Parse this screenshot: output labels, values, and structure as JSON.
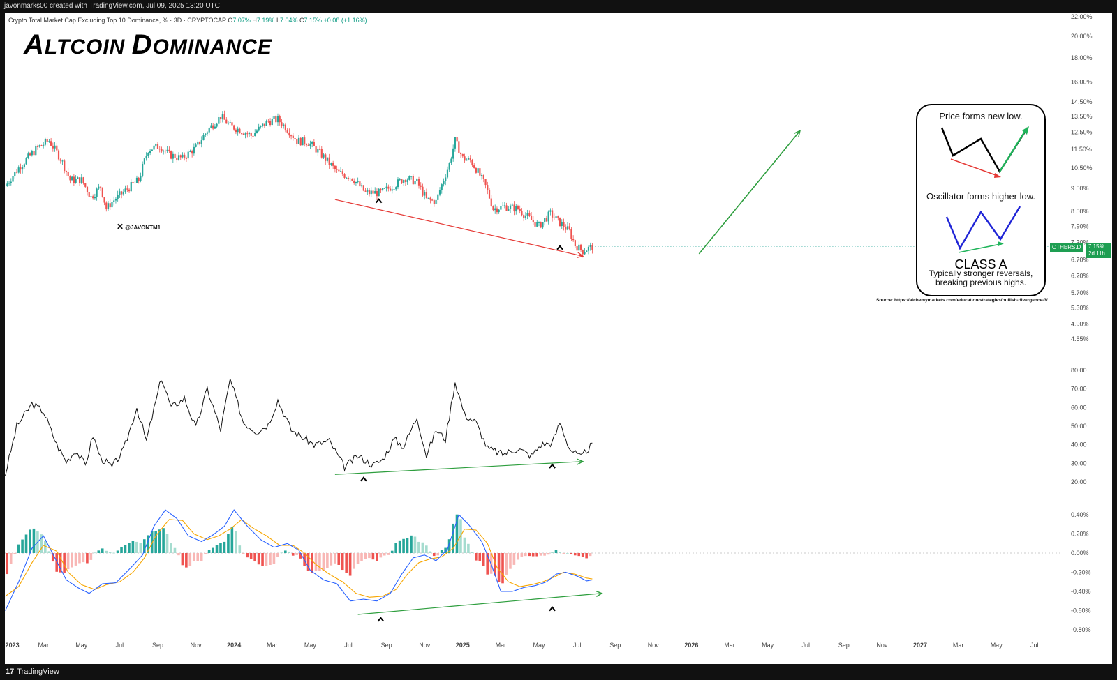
{
  "header": {
    "attribution": "javonmarks00 created with TradingView.com, Jul 09, 2025 13:20 UTC"
  },
  "footer": {
    "logo": "17",
    "brand": "TradingView"
  },
  "legend": {
    "symbol": "Crypto Total Market Cap Excluding Top 10 Dominance, % · 3D · CRYPTOCAP",
    "o_label": "O",
    "o": "7.07%",
    "h_label": "H",
    "h": "7.19%",
    "l_label": "L",
    "l": "7.04%",
    "c_label": "C",
    "c": "7.15%",
    "chg": "+0.08 (+1.16%)"
  },
  "title": {
    "first_big": "A",
    "first_rest": "LTCOIN ",
    "second_big": "D",
    "second_rest": "OMINANCE"
  },
  "watermark": "@JAVONTM1",
  "card": {
    "line1": "Price forms new low.",
    "line2": "Oscillator forms higher low.",
    "class_label": "CLASS A",
    "desc1": "Typically stronger reversals,",
    "desc2": "breaking previous highs."
  },
  "source": "Source: https://alchemymarkets.com/education/strategies/bullish-divergence-3/",
  "tags": {
    "symbol": "OTHERS.D",
    "price": "7.15%",
    "countdown": "2d 11h"
  },
  "colors": {
    "up": "#26a69a",
    "down": "#ef5350",
    "green": "#2e9e3e",
    "red": "#e53935",
    "blue": "#2962ff",
    "orange": "#f7a600"
  },
  "chart_data": [
    {
      "type": "candlestick",
      "title": "Crypto Total Market Cap Excluding Top 10 Dominance",
      "yscale": "log",
      "y_tick_labels": [
        "22.00%",
        "20.00%",
        "18.00%",
        "16.00%",
        "14.50%",
        "13.50%",
        "12.50%",
        "11.50%",
        "10.50%",
        "9.50%",
        "8.50%",
        "7.90%",
        "7.30%",
        "6.70%",
        "6.20%",
        "5.70%",
        "5.30%",
        "4.90%",
        "4.55%"
      ],
      "y_tick_values": [
        22,
        20,
        18,
        16,
        14.5,
        13.5,
        12.5,
        11.5,
        10.5,
        9.5,
        8.5,
        7.9,
        7.3,
        6.7,
        6.2,
        5.7,
        5.3,
        4.9,
        4.55
      ],
      "x_tick_labels": [
        "2023",
        "Mar",
        "May",
        "Jul",
        "Sep",
        "Nov",
        "2024",
        "Mar",
        "May",
        "Jul",
        "Sep",
        "Nov",
        "2025",
        "Mar",
        "May",
        "Jul",
        "Sep",
        "Nov",
        "2026",
        "Mar",
        "May",
        "Jul",
        "Sep",
        "Nov",
        "2027",
        "Mar",
        "May",
        "Jul"
      ],
      "x_tick_months": [
        0,
        2,
        4,
        6,
        8,
        10,
        12,
        14,
        16,
        18,
        20,
        22,
        24,
        26,
        28,
        30,
        32,
        34,
        36,
        38,
        40,
        42,
        44,
        46,
        48,
        50,
        52,
        54
      ],
      "x_range_months": [
        0,
        57.2
      ],
      "anchors": [
        [
          0,
          9.6
        ],
        [
          0.7,
          10.5
        ],
        [
          1.7,
          11.6
        ],
        [
          2.3,
          12.0
        ],
        [
          2.9,
          11.0
        ],
        [
          3.4,
          9.9
        ],
        [
          4.0,
          9.9
        ],
        [
          4.5,
          9.1
        ],
        [
          5.0,
          9.6
        ],
        [
          5.3,
          8.6
        ],
        [
          5.6,
          8.9
        ],
        [
          6.3,
          9.4
        ],
        [
          7.0,
          9.9
        ],
        [
          7.5,
          11.5
        ],
        [
          8.1,
          11.7
        ],
        [
          8.6,
          11.2
        ],
        [
          9.3,
          11.0
        ],
        [
          10.0,
          11.6
        ],
        [
          10.6,
          12.6
        ],
        [
          11.3,
          13.5
        ],
        [
          11.8,
          12.9
        ],
        [
          12.4,
          12.6
        ],
        [
          12.9,
          12.3
        ],
        [
          13.4,
          12.8
        ],
        [
          13.8,
          13.2
        ],
        [
          14.3,
          13.3
        ],
        [
          14.8,
          12.7
        ],
        [
          15.3,
          12.0
        ],
        [
          15.9,
          11.9
        ],
        [
          16.6,
          11.2
        ],
        [
          17.4,
          10.3
        ],
        [
          18.2,
          10.0
        ],
        [
          18.9,
          9.3
        ],
        [
          19.7,
          9.3
        ],
        [
          20.3,
          9.6
        ],
        [
          21.0,
          10.0
        ],
        [
          21.6,
          9.8
        ],
        [
          22.1,
          9.0
        ],
        [
          22.6,
          8.9
        ],
        [
          23.3,
          10.7
        ],
        [
          23.6,
          12.0
        ],
        [
          24.0,
          11.0
        ],
        [
          24.4,
          10.9
        ],
        [
          24.8,
          10.3
        ],
        [
          25.2,
          9.6
        ],
        [
          25.6,
          8.6
        ],
        [
          26.2,
          8.7
        ],
        [
          26.9,
          8.6
        ],
        [
          27.5,
          8.2
        ],
        [
          28.0,
          7.9
        ],
        [
          28.6,
          8.4
        ],
        [
          29.0,
          8.1
        ],
        [
          29.6,
          7.7
        ],
        [
          29.9,
          7.2
        ],
        [
          30.3,
          7.0
        ],
        [
          30.8,
          7.15
        ]
      ],
      "annotations": [
        {
          "kind": "trendline",
          "color": "red",
          "from": [
            17.3,
            9.0
          ],
          "to": [
            30.3,
            6.82
          ]
        },
        {
          "kind": "arrow",
          "color": "green",
          "from": [
            36.4,
            6.9
          ],
          "to": [
            41.7,
            12.6
          ]
        },
        {
          "kind": "caret",
          "at": [
            19.6,
            8.95
          ]
        },
        {
          "kind": "caret",
          "at": [
            29.1,
            7.12
          ]
        }
      ],
      "last": 7.15
    },
    {
      "type": "line",
      "title": "RSI",
      "y_tick_labels": [
        "80.00",
        "70.00",
        "60.00",
        "50.00",
        "40.00",
        "30.00",
        "20.00"
      ],
      "y_tick_values": [
        80,
        70,
        60,
        50,
        40,
        30,
        20
      ],
      "anchors": [
        [
          0,
          24
        ],
        [
          0.6,
          50
        ],
        [
          1.4,
          62
        ],
        [
          2.0,
          58
        ],
        [
          2.7,
          40
        ],
        [
          3.2,
          31
        ],
        [
          3.7,
          37
        ],
        [
          4.2,
          29
        ],
        [
          4.6,
          45
        ],
        [
          5.0,
          33
        ],
        [
          5.6,
          28
        ],
        [
          6.2,
          37
        ],
        [
          6.9,
          60
        ],
        [
          7.4,
          42
        ],
        [
          8.2,
          76
        ],
        [
          8.7,
          60
        ],
        [
          9.4,
          65
        ],
        [
          10.0,
          49
        ],
        [
          10.6,
          70
        ],
        [
          11.3,
          48
        ],
        [
          11.8,
          75
        ],
        [
          12.5,
          52
        ],
        [
          13.2,
          47
        ],
        [
          13.8,
          51
        ],
        [
          14.3,
          64
        ],
        [
          15.0,
          48
        ],
        [
          15.6,
          44
        ],
        [
          16.2,
          40
        ],
        [
          17.0,
          42
        ],
        [
          17.8,
          28
        ],
        [
          18.5,
          34
        ],
        [
          19.3,
          29
        ],
        [
          19.8,
          32
        ],
        [
          20.4,
          43
        ],
        [
          20.9,
          39
        ],
        [
          21.6,
          55
        ],
        [
          22.1,
          34
        ],
        [
          22.6,
          48
        ],
        [
          23.1,
          43
        ],
        [
          23.6,
          74
        ],
        [
          24.1,
          56
        ],
        [
          24.7,
          52
        ],
        [
          25.3,
          38
        ],
        [
          26.1,
          35
        ],
        [
          26.9,
          38
        ],
        [
          27.6,
          34
        ],
        [
          28.1,
          40
        ],
        [
          28.7,
          41
        ],
        [
          29.1,
          52
        ],
        [
          29.6,
          38
        ],
        [
          30.2,
          33
        ],
        [
          30.5,
          37
        ],
        [
          30.8,
          40
        ]
      ],
      "annotations": [
        {
          "kind": "trendline",
          "color": "green",
          "from": [
            17.3,
            24
          ],
          "to": [
            30.3,
            31
          ]
        },
        {
          "kind": "caret",
          "at": [
            18.8,
            21.6
          ]
        },
        {
          "kind": "caret",
          "at": [
            28.7,
            28.6
          ]
        }
      ]
    },
    {
      "type": "macd",
      "title": "MACD",
      "y_tick_labels": [
        "0.40%",
        "0.20%",
        "0.00%",
        "-0.20%",
        "-0.40%",
        "-0.60%",
        "-0.80%"
      ],
      "y_tick_values": [
        0.4,
        0.2,
        0,
        -0.2,
        -0.4,
        -0.6,
        -0.8
      ],
      "macd": [
        [
          0,
          -0.6
        ],
        [
          0.7,
          -0.3
        ],
        [
          1.4,
          0.05
        ],
        [
          2.0,
          0.18
        ],
        [
          2.6,
          -0.05
        ],
        [
          3.2,
          -0.28
        ],
        [
          3.8,
          -0.36
        ],
        [
          4.4,
          -0.42
        ],
        [
          5.1,
          -0.32
        ],
        [
          5.8,
          -0.31
        ],
        [
          6.6,
          -0.15
        ],
        [
          7.2,
          -0.02
        ],
        [
          7.8,
          0.28
        ],
        [
          8.4,
          0.45
        ],
        [
          9.0,
          0.36
        ],
        [
          9.6,
          0.18
        ],
        [
          10.3,
          0.12
        ],
        [
          10.9,
          0.19
        ],
        [
          11.5,
          0.28
        ],
        [
          12.0,
          0.45
        ],
        [
          12.7,
          0.28
        ],
        [
          13.4,
          0.14
        ],
        [
          14.1,
          0.06
        ],
        [
          14.8,
          0.1
        ],
        [
          15.4,
          0.03
        ],
        [
          16.0,
          -0.18
        ],
        [
          16.7,
          -0.28
        ],
        [
          17.4,
          -0.32
        ],
        [
          18.1,
          -0.5
        ],
        [
          18.8,
          -0.48
        ],
        [
          19.5,
          -0.5
        ],
        [
          20.2,
          -0.42
        ],
        [
          20.8,
          -0.22
        ],
        [
          21.4,
          -0.05
        ],
        [
          22.0,
          -0.02
        ],
        [
          22.6,
          -0.08
        ],
        [
          23.2,
          0.04
        ],
        [
          23.8,
          0.4
        ],
        [
          24.3,
          0.3
        ],
        [
          25.0,
          0.12
        ],
        [
          25.5,
          -0.12
        ],
        [
          26.0,
          -0.4
        ],
        [
          26.6,
          -0.4
        ],
        [
          27.2,
          -0.36
        ],
        [
          27.8,
          -0.34
        ],
        [
          28.4,
          -0.3
        ],
        [
          28.9,
          -0.22
        ],
        [
          29.4,
          -0.2
        ],
        [
          30.0,
          -0.24
        ],
        [
          30.5,
          -0.29
        ],
        [
          30.8,
          -0.28
        ]
      ],
      "signal": [
        [
          0,
          -0.45
        ],
        [
          0.7,
          -0.35
        ],
        [
          1.4,
          -0.1
        ],
        [
          2.0,
          0.08
        ],
        [
          2.7,
          0.02
        ],
        [
          3.3,
          -0.2
        ],
        [
          4.0,
          -0.33
        ],
        [
          4.7,
          -0.38
        ],
        [
          5.3,
          -0.33
        ],
        [
          6.0,
          -0.3
        ],
        [
          6.7,
          -0.2
        ],
        [
          7.3,
          -0.05
        ],
        [
          7.9,
          0.18
        ],
        [
          8.6,
          0.35
        ],
        [
          9.3,
          0.34
        ],
        [
          9.9,
          0.2
        ],
        [
          10.6,
          0.14
        ],
        [
          11.2,
          0.18
        ],
        [
          11.8,
          0.25
        ],
        [
          12.4,
          0.35
        ],
        [
          13.0,
          0.26
        ],
        [
          13.7,
          0.18
        ],
        [
          14.4,
          0.08
        ],
        [
          15.1,
          0.08
        ],
        [
          15.7,
          0.0
        ],
        [
          16.3,
          -0.12
        ],
        [
          17.0,
          -0.22
        ],
        [
          17.7,
          -0.3
        ],
        [
          18.4,
          -0.42
        ],
        [
          19.1,
          -0.46
        ],
        [
          19.8,
          -0.45
        ],
        [
          20.5,
          -0.38
        ],
        [
          21.1,
          -0.22
        ],
        [
          21.7,
          -0.1
        ],
        [
          22.3,
          -0.06
        ],
        [
          22.9,
          -0.04
        ],
        [
          23.5,
          0.05
        ],
        [
          24.1,
          0.25
        ],
        [
          24.7,
          0.24
        ],
        [
          25.3,
          0.1
        ],
        [
          25.8,
          -0.15
        ],
        [
          26.4,
          -0.3
        ],
        [
          27.0,
          -0.35
        ],
        [
          27.6,
          -0.33
        ],
        [
          28.2,
          -0.3
        ],
        [
          28.8,
          -0.25
        ],
        [
          29.3,
          -0.2
        ],
        [
          29.9,
          -0.22
        ],
        [
          30.5,
          -0.26
        ],
        [
          30.8,
          -0.27
        ]
      ],
      "annotations": [
        {
          "kind": "trendline",
          "color": "green",
          "from": [
            18.5,
            -0.64
          ],
          "to": [
            31.3,
            -0.42
          ]
        },
        {
          "kind": "caret",
          "at": [
            19.7,
            -0.69
          ]
        },
        {
          "kind": "caret",
          "at": [
            28.7,
            -0.58
          ]
        }
      ]
    }
  ]
}
